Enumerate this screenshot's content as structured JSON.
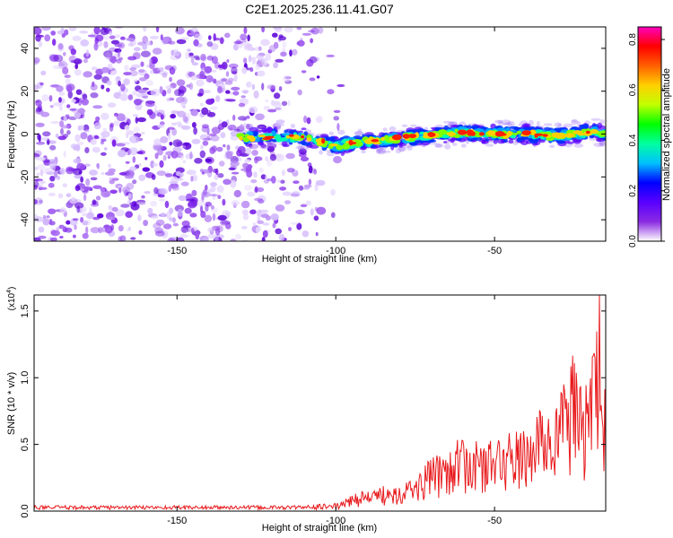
{
  "title": "C2E1.2025.236.11.41.G07",
  "colors": {
    "axis": "#000000",
    "snr_line": "#e8191c",
    "background": "#ffffff"
  },
  "chart_data": [
    {
      "type": "heatmap",
      "name": "spectrogram",
      "xlabel": "Height of straight line (km)",
      "ylabel": "Frequency (Hz)",
      "xlim": [
        -195,
        -15
      ],
      "ylim": [
        -50,
        50
      ],
      "x_ticks": [
        -150,
        -100,
        -50
      ],
      "x_tick_labels": [
        "-150",
        "-100",
        "-50"
      ],
      "y_ticks": [
        40,
        20,
        0,
        -20,
        -40
      ],
      "y_tick_labels": [
        "40",
        "20",
        "0",
        "-20",
        "-40"
      ],
      "noise_region_x": [
        -195,
        -104
      ],
      "signal_trace": {
        "x": [
          -130,
          -110,
          -100,
          -90,
          -80,
          -70,
          -60,
          -50,
          -40,
          -30,
          -20,
          -15
        ],
        "y": [
          -1.5,
          -1.5,
          -5.5,
          -3.5,
          -2.0,
          -0.5,
          0.5,
          0.0,
          0.0,
          -1.0,
          1.0,
          0.5
        ]
      },
      "colorbar": {
        "label": "Normalized spectral amplitude",
        "range": [
          0.0,
          0.85
        ],
        "ticks": [
          0.0,
          0.2,
          0.4,
          0.6,
          0.8
        ],
        "tick_labels": [
          "0.0",
          "0.2",
          "0.4",
          "0.6",
          "0.8"
        ],
        "colors": [
          "#ffffff",
          "#8a2be2",
          "#5a00ff",
          "#0000ff",
          "#00c0ff",
          "#00ffa0",
          "#00ff00",
          "#c0ff00",
          "#ffd000",
          "#ff6000",
          "#ff0000",
          "#ff00c0"
        ]
      }
    },
    {
      "type": "line",
      "name": "snr",
      "xlabel": "Height of straight line (km)",
      "ylabel": "SNR (10 * v/v)",
      "y_scale_label": "(x10",
      "y_scale_exponent": "4",
      "y_scale_close": ")",
      "xlim": [
        -195,
        -15
      ],
      "ylim": [
        0,
        1.62
      ],
      "x_ticks": [
        -150,
        -100,
        -50
      ],
      "x_tick_labels": [
        "-150",
        "-100",
        "-50"
      ],
      "y_ticks": [
        0.0,
        0.5,
        1.0,
        1.5
      ],
      "y_tick_labels": [
        "0.0",
        "0.5",
        "1.0",
        "1.5"
      ],
      "envelope": {
        "x": [
          -195,
          -110,
          -100,
          -95,
          -92,
          -88,
          -85,
          -80,
          -75,
          -72,
          -65,
          -60,
          -55,
          -50,
          -45,
          -40,
          -35,
          -30,
          -28,
          -25,
          -22,
          -20,
          -18,
          -16,
          -15
        ],
        "y": [
          0.03,
          0.03,
          0.05,
          0.12,
          0.16,
          0.15,
          0.2,
          0.22,
          0.25,
          0.35,
          0.5,
          0.55,
          0.52,
          0.55,
          0.6,
          0.62,
          0.8,
          0.9,
          1.0,
          1.2,
          0.95,
          1.1,
          1.62,
          1.0,
          1.15
        ]
      }
    }
  ]
}
